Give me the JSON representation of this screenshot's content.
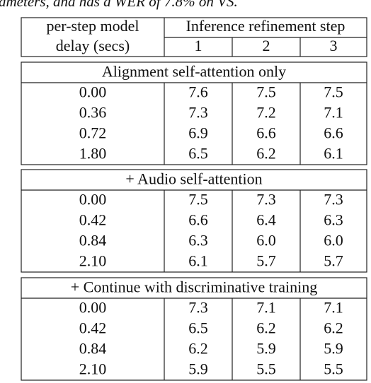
{
  "caption": "ameters, and has a WER of 7.8% on VS.",
  "table": {
    "header": {
      "first_column": [
        "per-step model",
        "delay (secs)"
      ],
      "group": "Inference refinement step",
      "steps": [
        "1",
        "2",
        "3"
      ]
    },
    "sections": [
      {
        "title": "Alignment self-attention only",
        "rows": [
          [
            "0.00",
            "7.6",
            "7.5",
            "7.5"
          ],
          [
            "0.36",
            "7.3",
            "7.2",
            "7.1"
          ],
          [
            "0.72",
            "6.9",
            "6.6",
            "6.6"
          ],
          [
            "1.80",
            "6.5",
            "6.2",
            "6.1"
          ]
        ]
      },
      {
        "title": "+ Audio self-attention",
        "rows": [
          [
            "0.00",
            "7.5",
            "7.3",
            "7.3"
          ],
          [
            "0.42",
            "6.6",
            "6.4",
            "6.3"
          ],
          [
            "0.84",
            "6.3",
            "6.0",
            "6.0"
          ],
          [
            "2.10",
            "6.1",
            "5.7",
            "5.7"
          ]
        ]
      },
      {
        "title": "+ Continue with discriminative training",
        "rows": [
          [
            "0.00",
            "7.3",
            "7.1",
            "7.1"
          ],
          [
            "0.42",
            "6.5",
            "6.2",
            "6.2"
          ],
          [
            "0.84",
            "6.2",
            "5.9",
            "5.9"
          ],
          [
            "2.10",
            "5.9",
            "5.5",
            "5.5"
          ]
        ]
      }
    ]
  }
}
